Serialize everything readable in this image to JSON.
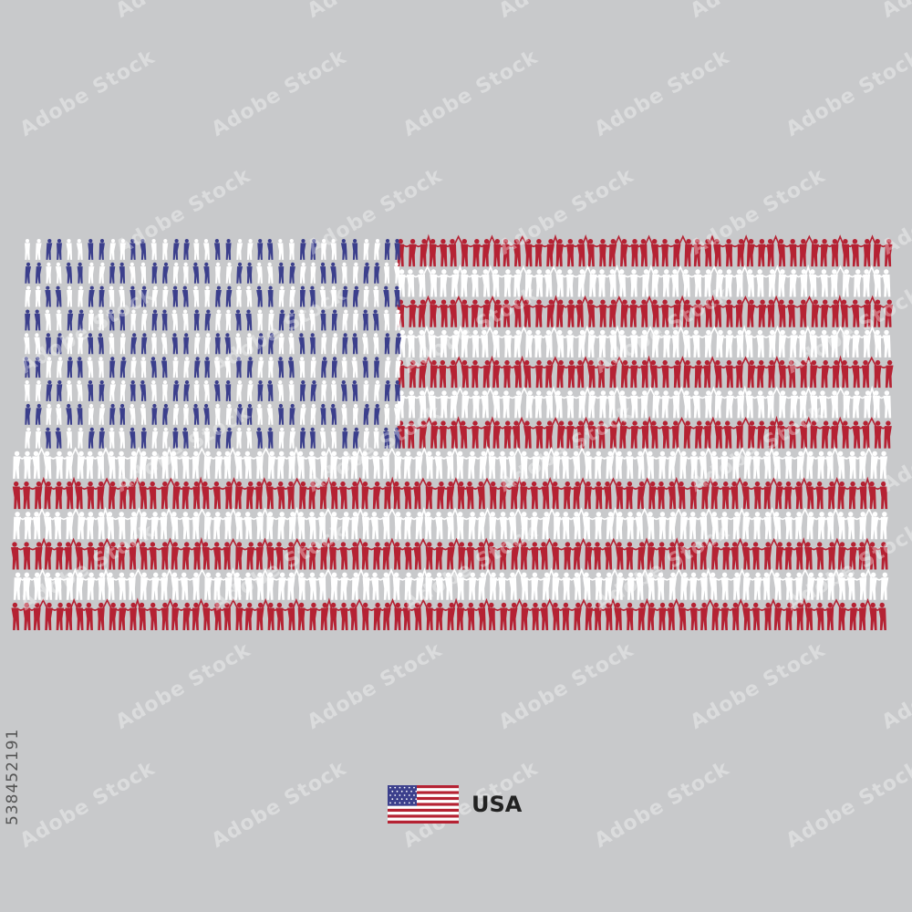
{
  "colors": {
    "background": "#c8c9cb",
    "blue": "#3b3f8c",
    "red": "#b52233",
    "white": "#ffffff"
  },
  "flag": {
    "stripes": 13,
    "canton_rows": 9
  },
  "caption": {
    "country": "USA"
  },
  "stock": {
    "id": "538452191",
    "watermark": "Adobe Stock"
  }
}
